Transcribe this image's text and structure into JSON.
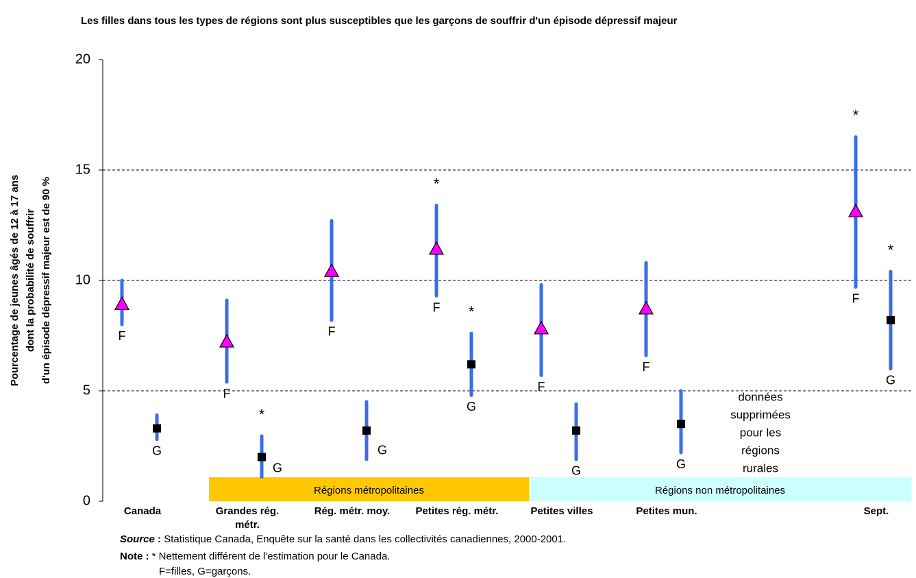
{
  "chart_data": {
    "type": "errorbar",
    "title": "Les filles dans tous les types de régions sont plus susceptibles que les garçons de souffrir d'un épisode dépressif majeur",
    "y_label": [
      "Pourcentage de jeunes âgés de 12 à 17 ans",
      "dont la probabilité de souffrir",
      "d'un épisode dépressif majeur est de 90 %"
    ],
    "categories": [
      "Canada",
      "Grandes rég. métr.",
      "Rég. métr. moy.",
      "Petites rég. métr.",
      "Petites villes",
      "Petites mun.",
      null,
      "Sept."
    ],
    "error_color": "#3a6ee8",
    "series": [
      {
        "name": "F",
        "marker": "triangle",
        "color": "#ff00ff",
        "values": [
          8.9,
          7.2,
          10.4,
          11.4,
          7.8,
          8.7,
          null,
          13.1
        ],
        "low": [
          8.0,
          5.4,
          8.2,
          9.3,
          5.7,
          6.6,
          null,
          9.7
        ],
        "high": [
          10.0,
          9.1,
          12.7,
          13.4,
          9.8,
          10.8,
          null,
          16.5
        ],
        "annotations": [
          null,
          null,
          null,
          "*",
          null,
          null,
          null,
          "*"
        ]
      },
      {
        "name": "G",
        "marker": "square",
        "color": "#000000",
        "values": [
          3.3,
          2.0,
          3.2,
          6.2,
          3.2,
          3.5,
          null,
          8.2
        ],
        "low": [
          2.8,
          1.1,
          1.9,
          4.8,
          1.9,
          2.2,
          null,
          6.0
        ],
        "high": [
          3.9,
          2.95,
          4.5,
          7.6,
          4.4,
          5.0,
          null,
          10.4
        ],
        "annotations": [
          null,
          "*",
          null,
          "*",
          null,
          null,
          null,
          "*"
        ]
      }
    ],
    "groups": [
      {
        "label": "Régions métropolitaines",
        "start": 1,
        "end": 3,
        "color": "#ffc800"
      },
      {
        "label": "Régions non métropolitaines",
        "start": 4,
        "end": 7,
        "color": "#ccffff"
      }
    ],
    "suppressed_note": [
      "données",
      "supprimées",
      "pour les",
      "régions",
      "rurales"
    ],
    "ylim": [
      0,
      20
    ],
    "yticks": [
      0,
      5,
      10,
      15,
      20
    ],
    "grid": true,
    "source_label": "Source",
    "source_sep": ":",
    "source": "Statistique Canada, Enquête sur la santé dans les collectivités canadiennes, 2000-2001.",
    "note_label": "Note :",
    "note": "* Nettement différent de l'estimation pour le Canada.",
    "note2": "F=filles, G=garçons."
  }
}
